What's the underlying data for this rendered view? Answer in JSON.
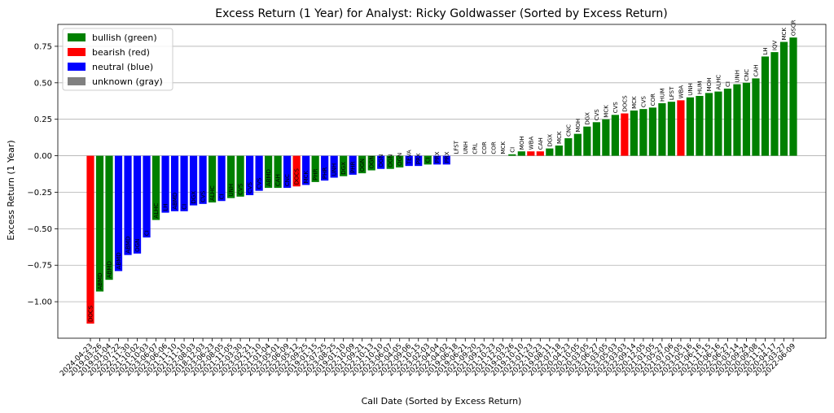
{
  "chart_data": {
    "type": "bar",
    "title": "Excess Return (1 Year) for Analyst: Ricky Goldwasser (Sorted by Excess Return)",
    "xlabel": "Call Date (Sorted by Excess Return)",
    "ylabel": "Excess Return (1 Year)",
    "ylim": [
      -1.25,
      0.9
    ],
    "yticks": [
      -1.0,
      -0.75,
      -0.5,
      -0.25,
      0.0,
      0.25,
      0.5,
      0.75
    ],
    "ytick_labels": [
      "−1.00",
      "−0.75",
      "−0.50",
      "−0.25",
      "0.00",
      "0.25",
      "0.50",
      "0.75"
    ],
    "grid": "horizontal",
    "legend_position": "top-left",
    "legend": [
      {
        "label": "bullish (green)",
        "color": "#008000"
      },
      {
        "label": "bearish (red)",
        "color": "#ff0000"
      },
      {
        "label": "neutral (blue)",
        "color": "#0000ff"
      },
      {
        "label": "unknown (gray)",
        "color": "#808080"
      }
    ],
    "bars": [
      {
        "date": "2024-04-23",
        "value": -1.15,
        "label": "DOCS",
        "rating": "bearish"
      },
      {
        "date": "2019-03-26",
        "value": -0.93,
        "label": "ABMD",
        "rating": "bullish"
      },
      {
        "date": "2019-01-04",
        "value": -0.85,
        "label": "ABMD",
        "rating": "bullish"
      },
      {
        "date": "2022-07-22",
        "value": -0.79,
        "label": "ABMD",
        "rating": "neutral"
      },
      {
        "date": "2022-11-30",
        "value": -0.68,
        "label": "ABMD",
        "rating": "neutral"
      },
      {
        "date": "2021-10-02",
        "value": -0.67,
        "label": "OGN",
        "rating": "neutral"
      },
      {
        "date": "2021-10-03",
        "value": -0.56,
        "label": "CI",
        "rating": "neutral"
      },
      {
        "date": "2023-06-07",
        "value": -0.44,
        "label": "ALHC",
        "rating": "bullish"
      },
      {
        "date": "2023-06-06",
        "value": -0.39,
        "label": "LH",
        "rating": "neutral"
      },
      {
        "date": "2021-11-10",
        "value": -0.38,
        "label": "ABMD",
        "rating": "neutral"
      },
      {
        "date": "2021-11-10",
        "value": -0.38,
        "label": "CI",
        "rating": "neutral"
      },
      {
        "date": "2022-08-03",
        "value": -0.34,
        "label": "DGX",
        "rating": "neutral"
      },
      {
        "date": "2018-12-03",
        "value": -0.33,
        "label": "CVS",
        "rating": "neutral"
      },
      {
        "date": "2023-06-23",
        "value": -0.32,
        "label": "ALHC",
        "rating": "bullish"
      },
      {
        "date": "2022-08-05",
        "value": -0.31,
        "label": "CI",
        "rating": "neutral"
      },
      {
        "date": "2021-11-05",
        "value": -0.29,
        "label": "UNH",
        "rating": "bullish"
      },
      {
        "date": "2022-03-30",
        "value": -0.28,
        "label": "CVS",
        "rating": "bullish"
      },
      {
        "date": "2023-02-21",
        "value": -0.27,
        "label": "CVS",
        "rating": "neutral"
      },
      {
        "date": "2022-12-10",
        "value": -0.24,
        "label": "CVS",
        "rating": "neutral"
      },
      {
        "date": "2021-01-04",
        "value": -0.22,
        "label": "ABMD",
        "rating": "bullish"
      },
      {
        "date": "2023-05-01",
        "value": -0.22,
        "label": "CAH",
        "rating": "bullish"
      },
      {
        "date": "2022-06-09",
        "value": -0.22,
        "label": "CNC",
        "rating": "neutral"
      },
      {
        "date": "2022-05-12",
        "value": -0.21,
        "label": "DOCS",
        "rating": "bearish"
      },
      {
        "date": "2022-09-25",
        "value": -0.2,
        "label": "MCK",
        "rating": "neutral"
      },
      {
        "date": "2019-01-15",
        "value": -0.18,
        "label": "PHR",
        "rating": "bullish"
      },
      {
        "date": "2022-07-25",
        "value": -0.17,
        "label": "PHR",
        "rating": "neutral"
      },
      {
        "date": "2023-08-25",
        "value": -0.15,
        "label": "UNH",
        "rating": "neutral"
      },
      {
        "date": "2019-01-10",
        "value": -0.14,
        "label": "DGX",
        "rating": "bullish"
      },
      {
        "date": "2022-10-09",
        "value": -0.13,
        "label": "PHR",
        "rating": "neutral"
      },
      {
        "date": "2021-09-21",
        "value": -0.12,
        "label": "OGN",
        "rating": "bullish"
      },
      {
        "date": "2022-10-13",
        "value": -0.1,
        "label": "OGN",
        "rating": "bullish"
      },
      {
        "date": "2022-10-10",
        "value": -0.09,
        "label": "OGN",
        "rating": "neutral"
      },
      {
        "date": "2023-06-07",
        "value": -0.09,
        "label": "OGN",
        "rating": "bullish"
      },
      {
        "date": "2022-04-05",
        "value": -0.08,
        "label": "OGN",
        "rating": "bullish"
      },
      {
        "date": "2022-09-06",
        "value": -0.07,
        "label": "TEVA",
        "rating": "neutral"
      },
      {
        "date": "2022-10-15",
        "value": -0.07,
        "label": "PRX",
        "rating": "neutral"
      },
      {
        "date": "2023-02-03",
        "value": -0.06,
        "label": "CI",
        "rating": "bullish"
      },
      {
        "date": "2022-04-04",
        "value": -0.06,
        "label": "PRX",
        "rating": "neutral"
      },
      {
        "date": "2022-04-02",
        "value": -0.06,
        "label": "PRX",
        "rating": "neutral"
      },
      {
        "date": "2019-06-18",
        "value": 0.0,
        "label": "LFST",
        "rating": "bullish"
      },
      {
        "date": "2019-06-21",
        "value": 0.0,
        "label": "UNH",
        "rating": "bullish"
      },
      {
        "date": "2021-09-20",
        "value": 0.0,
        "label": "CRL",
        "rating": "bullish"
      },
      {
        "date": "2021-09-23",
        "value": 0.0,
        "label": "COR",
        "rating": "bullish"
      },
      {
        "date": "2021-10-23",
        "value": 0.0,
        "label": "COR",
        "rating": "bullish"
      },
      {
        "date": "2021-12-03",
        "value": 0.0,
        "label": "MCK",
        "rating": "bullish"
      },
      {
        "date": "2019-03-26",
        "value": 0.01,
        "label": "CI",
        "rating": "bullish"
      },
      {
        "date": "2019-10-10",
        "value": 0.03,
        "label": "MOH",
        "rating": "bullish"
      },
      {
        "date": "2023-01-23",
        "value": 0.03,
        "label": "WBA",
        "rating": "bearish"
      },
      {
        "date": "2022-10-23",
        "value": 0.03,
        "label": "CAH",
        "rating": "bearish"
      },
      {
        "date": "2019-08-11",
        "value": 0.05,
        "label": "DGX",
        "rating": "bullish"
      },
      {
        "date": "2022-07-18",
        "value": 0.07,
        "label": "MCK",
        "rating": "bullish"
      },
      {
        "date": "2020-04-23",
        "value": 0.12,
        "label": "CNC",
        "rating": "bullish"
      },
      {
        "date": "2020-10-05",
        "value": 0.15,
        "label": "MOH",
        "rating": "bullish"
      },
      {
        "date": "2020-03-05",
        "value": 0.2,
        "label": "DGX",
        "rating": "bullish"
      },
      {
        "date": "2023-06-27",
        "value": 0.23,
        "label": "CVS",
        "rating": "bullish"
      },
      {
        "date": "2021-03-05",
        "value": 0.25,
        "label": "MCK",
        "rating": "bullish"
      },
      {
        "date": "2023-05-03",
        "value": 0.28,
        "label": "CVS",
        "rating": "bullish"
      },
      {
        "date": "2023-03-03",
        "value": 0.29,
        "label": "DOCS",
        "rating": "bearish"
      },
      {
        "date": "2022-09-14",
        "value": 0.31,
        "label": "MCK",
        "rating": "bullish"
      },
      {
        "date": "2020-12-05",
        "value": 0.32,
        "label": "CVS",
        "rating": "bullish"
      },
      {
        "date": "2021-01-05",
        "value": 0.33,
        "label": "COR",
        "rating": "bullish"
      },
      {
        "date": "2021-05-27",
        "value": 0.36,
        "label": "HUM",
        "rating": "bullish"
      },
      {
        "date": "2021-07-06",
        "value": 0.37,
        "label": "LFST",
        "rating": "bullish"
      },
      {
        "date": "2023-01-05",
        "value": 0.38,
        "label": "WBA",
        "rating": "bearish"
      },
      {
        "date": "2023-05-16",
        "value": 0.4,
        "label": "UNH",
        "rating": "bullish"
      },
      {
        "date": "2021-06-16",
        "value": 0.41,
        "label": "HUM",
        "rating": "bullish"
      },
      {
        "date": "2021-11-15",
        "value": 0.43,
        "label": "MOH",
        "rating": "bullish"
      },
      {
        "date": "2020-06-16",
        "value": 0.44,
        "label": "ALHC",
        "rating": "bullish"
      },
      {
        "date": "2022-06-27",
        "value": 0.46,
        "label": "CI",
        "rating": "bullish"
      },
      {
        "date": "2020-03-14",
        "value": 0.49,
        "label": "UNH",
        "rating": "bullish"
      },
      {
        "date": "2020-09-24",
        "value": 0.5,
        "label": "CNC",
        "rating": "bullish"
      },
      {
        "date": "2020-09-08",
        "value": 0.53,
        "label": "CAH",
        "rating": "bullish"
      },
      {
        "date": "2020-11-17",
        "value": 0.68,
        "label": "LH",
        "rating": "bullish"
      },
      {
        "date": "2020-04-17",
        "value": 0.71,
        "label": "IQV",
        "rating": "bullish"
      },
      {
        "date": "2022-03-27",
        "value": 0.78,
        "label": "MCK",
        "rating": "bullish"
      },
      {
        "date": "2022-06-09",
        "value": 0.81,
        "label": "OSCR",
        "rating": "bullish"
      }
    ]
  }
}
